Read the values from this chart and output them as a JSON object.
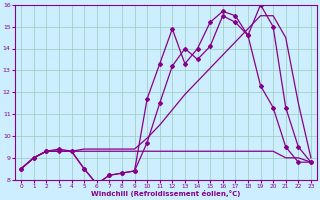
{
  "xlabel": "Windchill (Refroidissement éolien,°C)",
  "background_color": "#cceeff",
  "grid_color": "#aaddcc",
  "line_color": "#880088",
  "xlim": [
    -0.5,
    23.5
  ],
  "ylim": [
    8,
    16
  ],
  "xticks": [
    0,
    1,
    2,
    3,
    4,
    5,
    6,
    7,
    8,
    9,
    10,
    11,
    12,
    13,
    14,
    15,
    16,
    17,
    18,
    19,
    20,
    21,
    22,
    23
  ],
  "yticks": [
    8,
    9,
    10,
    11,
    12,
    13,
    14,
    15,
    16
  ],
  "series1_x": [
    0,
    1,
    2,
    3,
    4,
    5,
    6,
    7,
    8,
    9,
    10,
    11,
    12,
    13,
    14,
    15,
    16,
    17,
    18,
    19,
    20,
    21,
    22,
    23
  ],
  "series1_y": [
    8.5,
    9.0,
    9.3,
    9.3,
    9.3,
    9.3,
    9.3,
    9.3,
    9.3,
    9.3,
    9.3,
    9.3,
    9.3,
    9.3,
    9.3,
    9.3,
    9.3,
    9.3,
    9.3,
    9.3,
    9.3,
    9.0,
    9.0,
    8.8
  ],
  "series2_x": [
    0,
    1,
    2,
    3,
    4,
    5,
    6,
    7,
    8,
    9,
    10,
    11,
    12,
    13,
    14,
    15,
    16,
    17,
    18,
    19,
    20,
    21,
    22,
    23
  ],
  "series2_y": [
    8.5,
    9.0,
    9.3,
    9.3,
    9.3,
    8.5,
    7.8,
    8.2,
    8.3,
    8.4,
    9.7,
    11.5,
    13.2,
    14.0,
    13.5,
    14.1,
    15.5,
    15.2,
    14.6,
    12.3,
    11.3,
    9.5,
    8.8,
    8.8
  ],
  "series3_x": [
    0,
    1,
    2,
    3,
    4,
    5,
    6,
    7,
    8,
    9,
    10,
    11,
    12,
    13,
    14,
    15,
    16,
    17,
    18,
    19,
    20,
    21,
    22,
    23
  ],
  "series3_y": [
    8.5,
    9.0,
    9.3,
    9.4,
    9.3,
    8.5,
    7.8,
    8.2,
    8.3,
    8.4,
    11.7,
    13.3,
    14.9,
    13.3,
    14.0,
    15.2,
    15.7,
    15.5,
    14.6,
    16.0,
    15.0,
    11.3,
    9.5,
    8.8
  ],
  "series4_x": [
    0,
    1,
    2,
    3,
    4,
    5,
    6,
    7,
    8,
    9,
    10,
    11,
    12,
    13,
    14,
    15,
    16,
    17,
    18,
    19,
    20,
    21,
    22,
    23
  ],
  "series4_y": [
    8.5,
    9.0,
    9.3,
    9.3,
    9.3,
    9.4,
    9.4,
    9.4,
    9.4,
    9.4,
    9.9,
    10.5,
    11.2,
    11.9,
    12.5,
    13.1,
    13.7,
    14.3,
    14.9,
    15.5,
    15.5,
    14.5,
    11.5,
    9.0
  ]
}
